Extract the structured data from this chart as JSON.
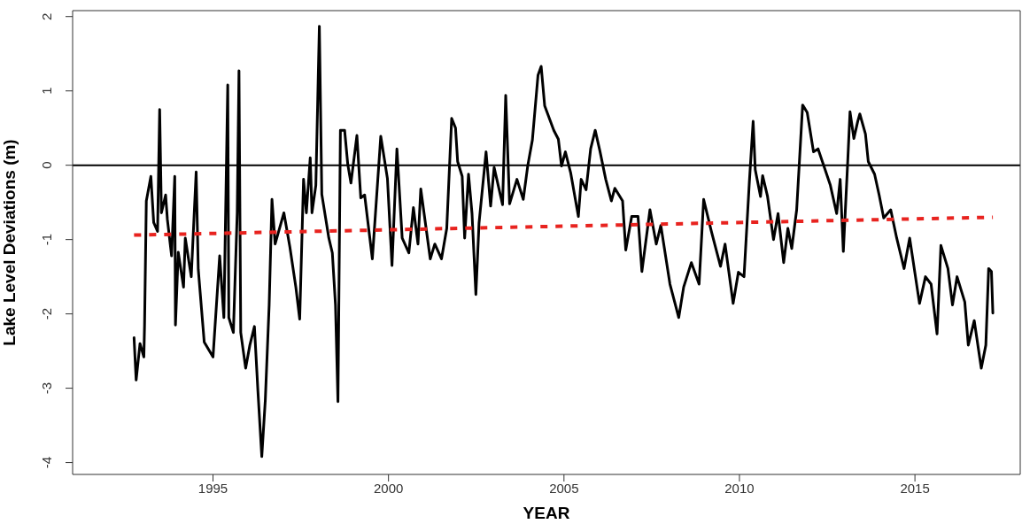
{
  "chart_data": {
    "type": "line",
    "xlabel": "YEAR",
    "ylabel": "Lake Level Deviations (m)",
    "xlim": [
      1991,
      2018
    ],
    "xticks": [
      1995,
      2000,
      2005,
      2010,
      2015
    ],
    "ylim": [
      -4.16,
      2.08
    ],
    "yticks": [
      -4,
      -3,
      -2,
      -1,
      0,
      1,
      2
    ],
    "grid": false,
    "marker": "none",
    "ref_lines": [
      {
        "axis": "y",
        "value": 0,
        "color": "#000000"
      }
    ],
    "series": [
      {
        "type": "line",
        "color": "#000000",
        "line_style": "solid",
        "x": [
          1992.75,
          1992.81,
          1992.92,
          1993.03,
          1993.05,
          1993.1,
          1993.23,
          1993.31,
          1993.42,
          1993.48,
          1993.53,
          1993.65,
          1993.7,
          1993.82,
          1993.91,
          1993.93,
          1994.01,
          1994.16,
          1994.21,
          1994.38,
          1994.52,
          1994.58,
          1994.75,
          1995.0,
          1995.19,
          1995.31,
          1995.42,
          1995.45,
          1995.58,
          1995.69,
          1995.74,
          1995.79,
          1995.93,
          1996.05,
          1996.18,
          1996.28,
          1996.39,
          1996.49,
          1996.6,
          1996.68,
          1996.77,
          1997.02,
          1997.19,
          1997.36,
          1997.47,
          1997.58,
          1997.66,
          1997.77,
          1997.82,
          1997.93,
          1998.03,
          1998.1,
          1998.3,
          1998.4,
          1998.49,
          1998.56,
          1998.63,
          1998.75,
          1998.84,
          1998.93,
          1999.1,
          1999.21,
          1999.32,
          1999.54,
          1999.78,
          1999.97,
          2000.1,
          2000.24,
          2000.39,
          2000.58,
          2000.71,
          2000.84,
          2000.92,
          2001.19,
          2001.32,
          2001.51,
          2001.66,
          2001.8,
          2001.91,
          2001.97,
          2002.1,
          2002.17,
          2002.28,
          2002.38,
          2002.49,
          2002.58,
          2002.78,
          2002.91,
          2003.01,
          2003.25,
          2003.34,
          2003.45,
          2003.66,
          2003.84,
          2003.97,
          2004.1,
          2004.26,
          2004.35,
          2004.45,
          2004.71,
          2004.84,
          2004.93,
          2005.04,
          2005.19,
          2005.41,
          2005.49,
          2005.63,
          2005.76,
          2005.89,
          2006.02,
          2006.19,
          2006.35,
          2006.45,
          2006.67,
          2006.76,
          2006.93,
          2007.11,
          2007.22,
          2007.45,
          2007.63,
          2007.76,
          2008.02,
          2008.27,
          2008.41,
          2008.63,
          2008.85,
          2008.98,
          2009.2,
          2009.46,
          2009.59,
          2009.82,
          2009.97,
          2010.13,
          2010.28,
          2010.39,
          2010.45,
          2010.6,
          2010.66,
          2010.8,
          2010.97,
          2011.1,
          2011.26,
          2011.38,
          2011.49,
          2011.63,
          2011.8,
          2011.93,
          2012.11,
          2012.24,
          2012.42,
          2012.59,
          2012.77,
          2012.87,
          2012.96,
          2013.09,
          2013.15,
          2013.26,
          2013.37,
          2013.43,
          2013.59,
          2013.67,
          2013.85,
          2013.98,
          2014.11,
          2014.31,
          2014.48,
          2014.69,
          2014.85,
          2015.13,
          2015.3,
          2015.46,
          2015.63,
          2015.74,
          2015.94,
          2016.07,
          2016.2,
          2016.42,
          2016.52,
          2016.69,
          2016.89,
          2017.02,
          2017.1,
          2017.18,
          2017.22
        ],
        "values": [
          -2.32,
          -2.89,
          -2.4,
          -2.58,
          -2.14,
          -0.48,
          -0.15,
          -0.77,
          -0.89,
          0.75,
          -0.64,
          -0.4,
          -0.73,
          -1.22,
          -0.15,
          -2.15,
          -1.17,
          -1.64,
          -0.98,
          -1.5,
          -0.09,
          -1.4,
          -2.38,
          -2.58,
          -1.22,
          -2.05,
          1.08,
          -2.05,
          -2.25,
          -0.64,
          1.27,
          -2.25,
          -2.73,
          -2.42,
          -2.17,
          -3.04,
          -3.92,
          -3.16,
          -1.88,
          -0.46,
          -1.06,
          -0.64,
          -1.1,
          -1.64,
          -2.07,
          -0.19,
          -0.64,
          0.1,
          -0.64,
          -0.27,
          1.87,
          -0.39,
          -0.98,
          -1.18,
          -1.88,
          -3.18,
          0.47,
          0.47,
          0.01,
          -0.24,
          0.4,
          -0.44,
          -0.4,
          -1.26,
          0.39,
          -0.18,
          -1.35,
          0.22,
          -0.98,
          -1.18,
          -0.57,
          -1.06,
          -0.32,
          -1.26,
          -1.06,
          -1.26,
          -0.85,
          0.63,
          0.5,
          0.05,
          -0.15,
          -0.98,
          -0.12,
          -0.65,
          -1.74,
          -0.78,
          0.18,
          -0.55,
          -0.03,
          -0.53,
          0.94,
          -0.52,
          -0.19,
          -0.46,
          0.0,
          0.34,
          1.21,
          1.33,
          0.8,
          0.47,
          0.35,
          -0.01,
          0.18,
          -0.1,
          -0.69,
          -0.19,
          -0.33,
          0.22,
          0.47,
          0.2,
          -0.19,
          -0.48,
          -0.31,
          -0.48,
          -1.14,
          -0.69,
          -0.69,
          -1.43,
          -0.6,
          -1.06,
          -0.81,
          -1.6,
          -2.05,
          -1.64,
          -1.31,
          -1.6,
          -0.46,
          -0.89,
          -1.36,
          -1.06,
          -1.86,
          -1.44,
          -1.5,
          -0.24,
          0.59,
          -0.06,
          -0.42,
          -0.14,
          -0.42,
          -1.0,
          -0.65,
          -1.31,
          -0.85,
          -1.12,
          -0.6,
          0.81,
          0.71,
          0.18,
          0.22,
          -0.03,
          -0.27,
          -0.65,
          -0.19,
          -1.16,
          0.1,
          0.72,
          0.36,
          0.59,
          0.69,
          0.42,
          0.05,
          -0.12,
          -0.4,
          -0.71,
          -0.6,
          -0.98,
          -1.39,
          -0.98,
          -1.86,
          -1.5,
          -1.6,
          -2.27,
          -1.08,
          -1.39,
          -1.88,
          -1.5,
          -1.84,
          -2.42,
          -2.09,
          -2.73,
          -2.42,
          -1.39,
          -1.43,
          -1.99
        ]
      },
      {
        "type": "line",
        "color": "#e8231f",
        "line_style": "dashed",
        "x": [
          1992.75,
          2017.22
        ],
        "values": [
          -0.94,
          -0.7
        ]
      }
    ]
  }
}
